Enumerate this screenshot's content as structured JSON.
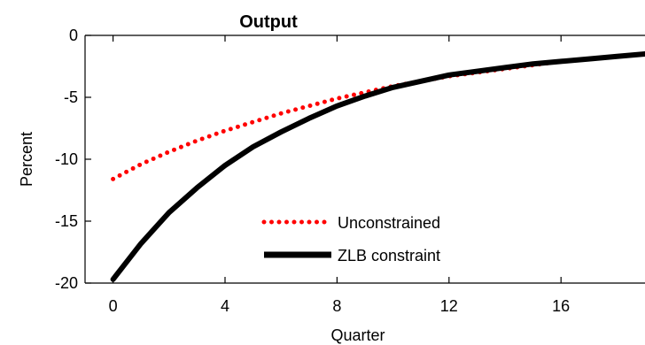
{
  "chart_data": {
    "type": "line",
    "title": "Output",
    "xlabel": "Quarter",
    "ylabel": "Percent",
    "xlim": [
      -1,
      19
    ],
    "ylim": [
      -20,
      0
    ],
    "xticks": [
      0,
      4,
      8,
      12,
      16
    ],
    "yticks": [
      0,
      -5,
      -10,
      -15,
      -20
    ],
    "x_tick_labels": [
      "0",
      "4",
      "8",
      "12",
      "16"
    ],
    "y_tick_labels": [
      "0",
      "-5",
      "-10",
      "-15",
      "-20"
    ],
    "grid": false,
    "legend_position": "bottom-center",
    "x": [
      0,
      1,
      2,
      3,
      4,
      5,
      6,
      7,
      8,
      9,
      10,
      11,
      12,
      13,
      14,
      15,
      16,
      17,
      18,
      19
    ],
    "series": [
      {
        "name": "Unconstrained",
        "color": "#ff0000",
        "style": "dotted",
        "values": [
          -11.6,
          -10.4,
          -9.4,
          -8.5,
          -7.7,
          -7.0,
          -6.3,
          -5.7,
          -5.1,
          -4.6,
          -4.1,
          -3.7,
          -3.3,
          -3.0,
          -2.7,
          -2.4,
          -2.1,
          -1.9,
          -1.7,
          -1.5
        ]
      },
      {
        "name": "ZLB constraint",
        "color": "#000000",
        "style": "solid",
        "values": [
          -19.7,
          -16.8,
          -14.3,
          -12.3,
          -10.5,
          -9.0,
          -7.8,
          -6.7,
          -5.7,
          -4.9,
          -4.2,
          -3.7,
          -3.2,
          -2.9,
          -2.6,
          -2.3,
          -2.1,
          -1.9,
          -1.7,
          -1.5
        ]
      }
    ]
  }
}
